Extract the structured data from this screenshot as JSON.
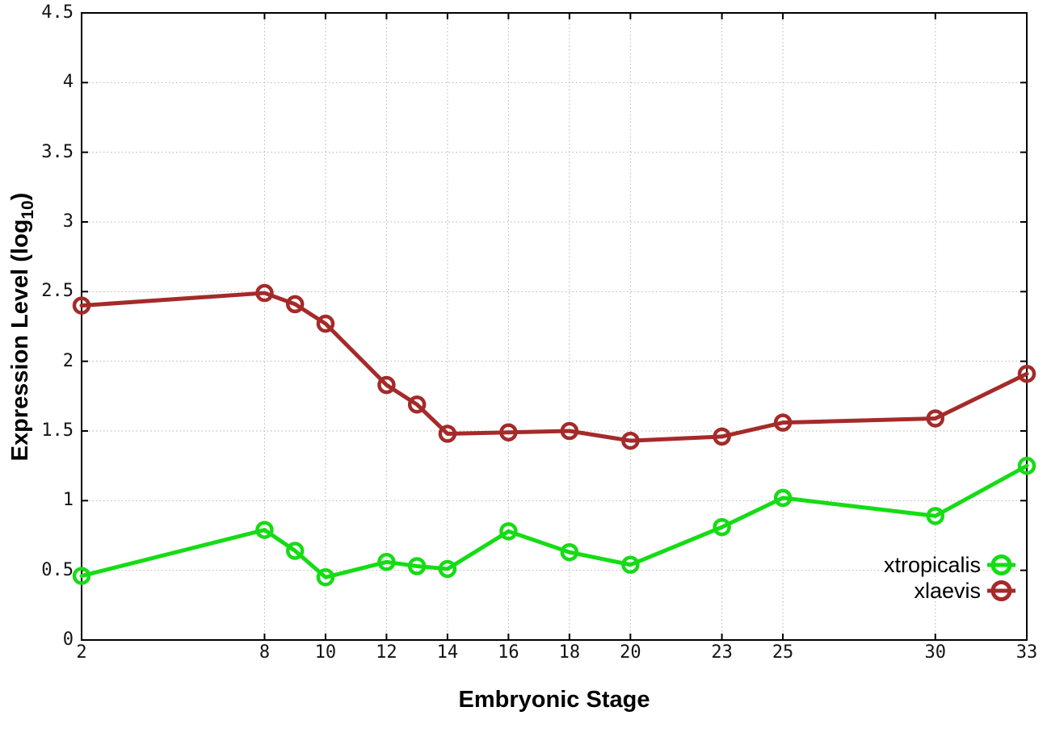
{
  "chart_data": {
    "type": "line",
    "title": "",
    "xlabel": "Embryonic Stage",
    "ylabel_parts": {
      "text": "Expression Level (log",
      "sub": "10",
      "close": ")"
    },
    "xlim": [
      2,
      33
    ],
    "ylim": [
      0,
      4.5
    ],
    "x_tick_labels": [
      2,
      8,
      10,
      12,
      14,
      16,
      18,
      20,
      23,
      25,
      30,
      33
    ],
    "y_ticks": [
      0,
      0.5,
      1,
      1.5,
      2,
      2.5,
      3,
      3.5,
      4,
      4.5
    ],
    "grid": true,
    "marker": "open-circle",
    "legend_position": "inside-bottom-right",
    "x": [
      2,
      8,
      9,
      10,
      12,
      13,
      14,
      16,
      18,
      20,
      23,
      25,
      30,
      33
    ],
    "series": [
      {
        "name": "xtropicalis",
        "color": "#15dc15",
        "values": [
          0.46,
          0.79,
          0.64,
          0.45,
          0.56,
          0.53,
          0.51,
          0.78,
          0.63,
          0.54,
          0.81,
          1.02,
          0.89,
          1.25
        ]
      },
      {
        "name": "xlaevis",
        "color": "#a52a2a",
        "values": [
          2.4,
          2.49,
          2.41,
          2.27,
          1.83,
          1.69,
          1.48,
          1.49,
          1.5,
          1.43,
          1.46,
          1.56,
          1.59,
          1.91
        ]
      }
    ],
    "colors": {
      "grid": "#b5b5b5",
      "axis": "#000000",
      "tick_label": "#141414"
    }
  }
}
